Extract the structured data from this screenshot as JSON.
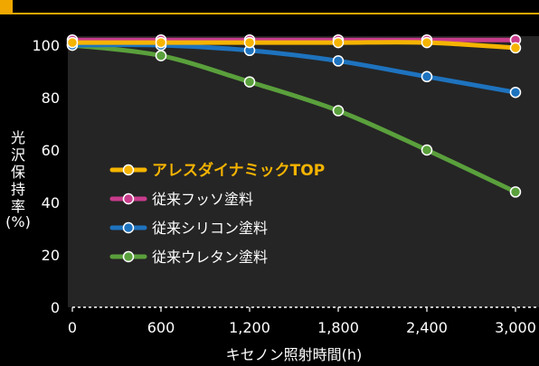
{
  "chart_data": {
    "type": "line",
    "title": "",
    "xlabel": "キセノン照射時間(h)",
    "ylabel": "光沢保持率(%)",
    "ylabel_chars": [
      "光",
      "沢",
      "保",
      "持",
      "率"
    ],
    "ylabel_unit": "(%)",
    "xlim": [
      0,
      3000
    ],
    "ylim": [
      0,
      100
    ],
    "x": [
      0,
      600,
      1200,
      1800,
      2400,
      3000
    ],
    "x_tick_labels": [
      "0",
      "600",
      "1,200",
      "1,800",
      "2,400",
      "3,000"
    ],
    "y_ticks": [
      0,
      20,
      40,
      60,
      80,
      100
    ],
    "y_tick_labels": [
      "0",
      "20",
      "40",
      "60",
      "80",
      "100"
    ],
    "grid": false,
    "legend_position": "left-center",
    "series": [
      {
        "name": "アレスダイナミックTOP",
        "color": "#f5b400",
        "values": [
          101,
          101,
          101,
          101,
          101,
          99
        ]
      },
      {
        "name": "従来フッソ塗料",
        "color": "#c83c8c",
        "values": [
          102,
          102,
          102,
          102,
          102,
          102
        ]
      },
      {
        "name": "従来シリコン塗料",
        "color": "#1e73be",
        "values": [
          100,
          100,
          98,
          94,
          88,
          82
        ]
      },
      {
        "name": "従来ウレタン塗料",
        "color": "#5aa03c",
        "values": [
          100,
          96,
          86,
          75,
          60,
          44
        ]
      }
    ]
  }
}
